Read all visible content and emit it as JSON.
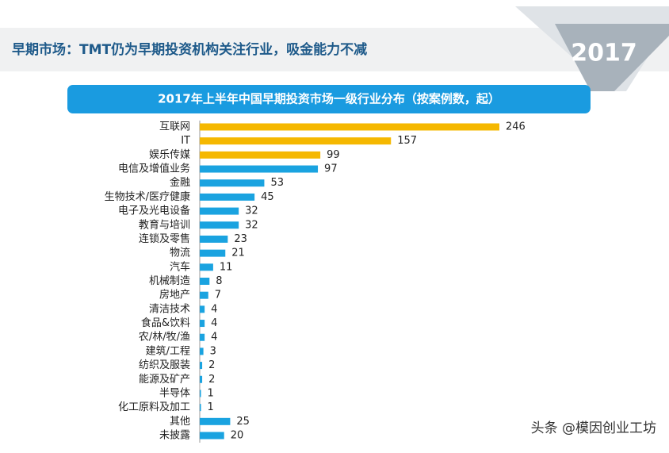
{
  "header": {
    "title": "早期市场：TMT仍为早期投资机构关注行业，吸金能力不减",
    "badge": "2017"
  },
  "chart_data": {
    "type": "bar",
    "orientation": "horizontal",
    "title": "2017年上半年中国早期投资市场一级行业分布（按案例数，起）",
    "categories": [
      "互联网",
      "IT",
      "娱乐传媒",
      "电信及增值业务",
      "金融",
      "生物技术/医疗健康",
      "电子及光电设备",
      "教育与培训",
      "连锁及零售",
      "物流",
      "汽车",
      "机械制造",
      "房地产",
      "清洁技术",
      "食品&饮料",
      "农/林/牧/渔",
      "建筑/工程",
      "纺织及服装",
      "能源及矿产",
      "半导体",
      "化工原料及加工",
      "其他",
      "未披露"
    ],
    "values": [
      246,
      157,
      99,
      97,
      53,
      45,
      32,
      32,
      23,
      21,
      11,
      8,
      7,
      4,
      4,
      4,
      3,
      2,
      2,
      1,
      1,
      25,
      20
    ],
    "colors": [
      "#f5b800",
      "#f5b800",
      "#f5b800",
      "#1aa3e0",
      "#1aa3e0",
      "#1aa3e0",
      "#1aa3e0",
      "#1aa3e0",
      "#1aa3e0",
      "#1aa3e0",
      "#1aa3e0",
      "#1aa3e0",
      "#1aa3e0",
      "#1aa3e0",
      "#1aa3e0",
      "#1aa3e0",
      "#1aa3e0",
      "#1aa3e0",
      "#1aa3e0",
      "#1aa3e0",
      "#1aa3e0",
      "#1aa3e0",
      "#1aa3e0"
    ]
  },
  "watermark": "头条 @模因创业工坊"
}
